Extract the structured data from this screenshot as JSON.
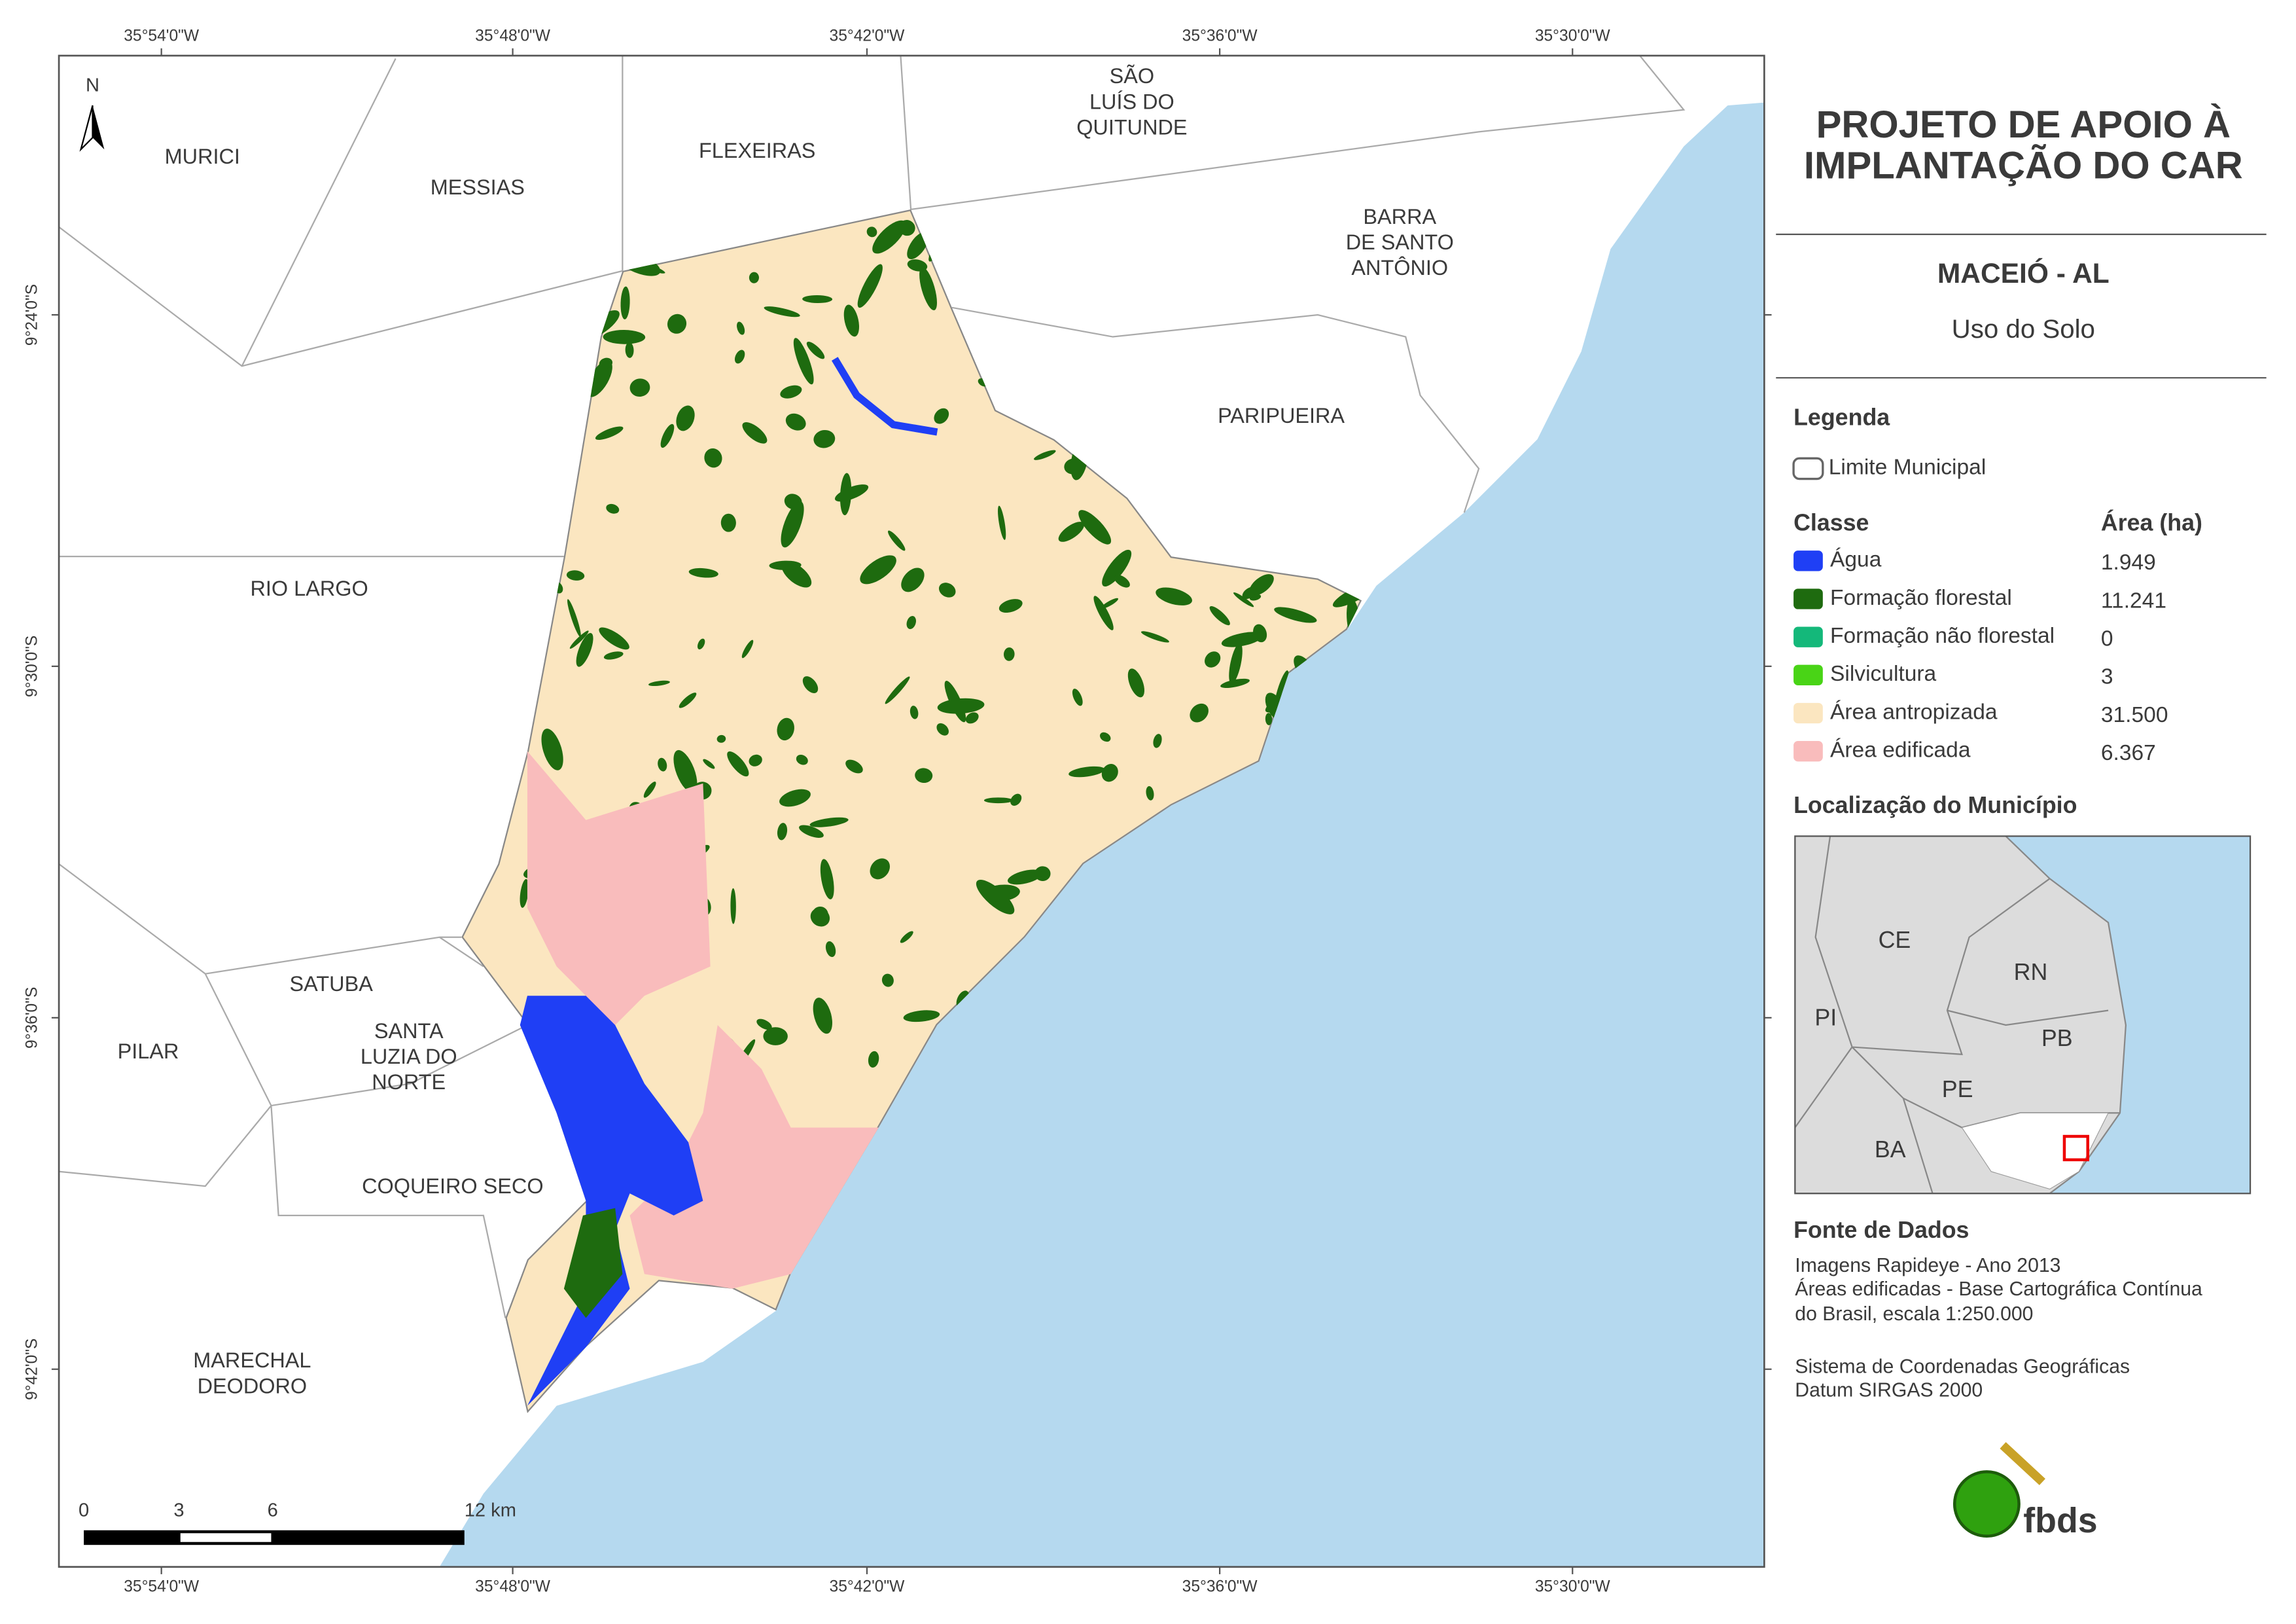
{
  "header": {
    "title": [
      "PROJETO DE APOIO À",
      "IMPLANTAÇÃO DO CAR"
    ],
    "place": "MACEIÓ - AL",
    "theme": "Uso do Solo"
  },
  "legend": {
    "title": "Legenda",
    "boundary": "Limite Municipal",
    "class_header": "Classe",
    "area_header": "Área (ha)",
    "classes": [
      {
        "name": "Água",
        "area": "1.949",
        "color": "#1f3ff5"
      },
      {
        "name": "Formação florestal",
        "area": "11.241",
        "color": "#1e6b0f"
      },
      {
        "name": "Formação não florestal",
        "area": "0",
        "color": "#14b87a"
      },
      {
        "name": "Silvicultura",
        "area": "3",
        "color": "#49d416"
      },
      {
        "name": "Área antropizada",
        "area": "31.500",
        "color": "#fbe6c0"
      },
      {
        "name": "Área edificada",
        "area": "6.367",
        "color": "#f9bcbc"
      }
    ]
  },
  "location": {
    "title": "Localização do Município",
    "states": [
      "CE",
      "RN",
      "PI",
      "PB",
      "PE",
      "BA"
    ]
  },
  "source": {
    "title": "Fonte de Dados",
    "lines": [
      "Imagens Rapideye - Ano 2013",
      "Áreas edificadas - Base Cartográfica Contínua",
      "do Brasil, escala 1:250.000",
      "Sistema de Coordenadas Geográficas",
      "Datum SIRGAS 2000"
    ]
  },
  "logo": "fbds",
  "map": {
    "north": "N",
    "municipalities": [
      [
        "MURICI"
      ],
      [
        "MESSIAS"
      ],
      [
        "FLEXEIRAS"
      ],
      [
        "SÃO",
        "LUÍS DO",
        "QUITUNDE"
      ],
      [
        "BARRA",
        "DE SANTO",
        "ANTÔNIO"
      ],
      [
        "PARIPUEIRA"
      ],
      [
        "RIO LARGO"
      ],
      [
        "SATUBA"
      ],
      [
        "SANTA",
        "LUZIA DO",
        "NORTE"
      ],
      [
        "PILAR"
      ],
      [
        "COQUEIRO SECO"
      ],
      [
        "MARECHAL",
        "DEODORO"
      ]
    ],
    "lon_ticks": [
      "35°54'0\"W",
      "35°48'0\"W",
      "35°42'0\"W",
      "35°36'0\"W",
      "35°30'0\"W"
    ],
    "lat_ticks": [
      "9°24'0\"S",
      "9°30'0\"S",
      "9°36'0\"S",
      "9°42'0\"S"
    ],
    "scale_labels": [
      "0",
      "3",
      "6",
      "12 km"
    ]
  }
}
